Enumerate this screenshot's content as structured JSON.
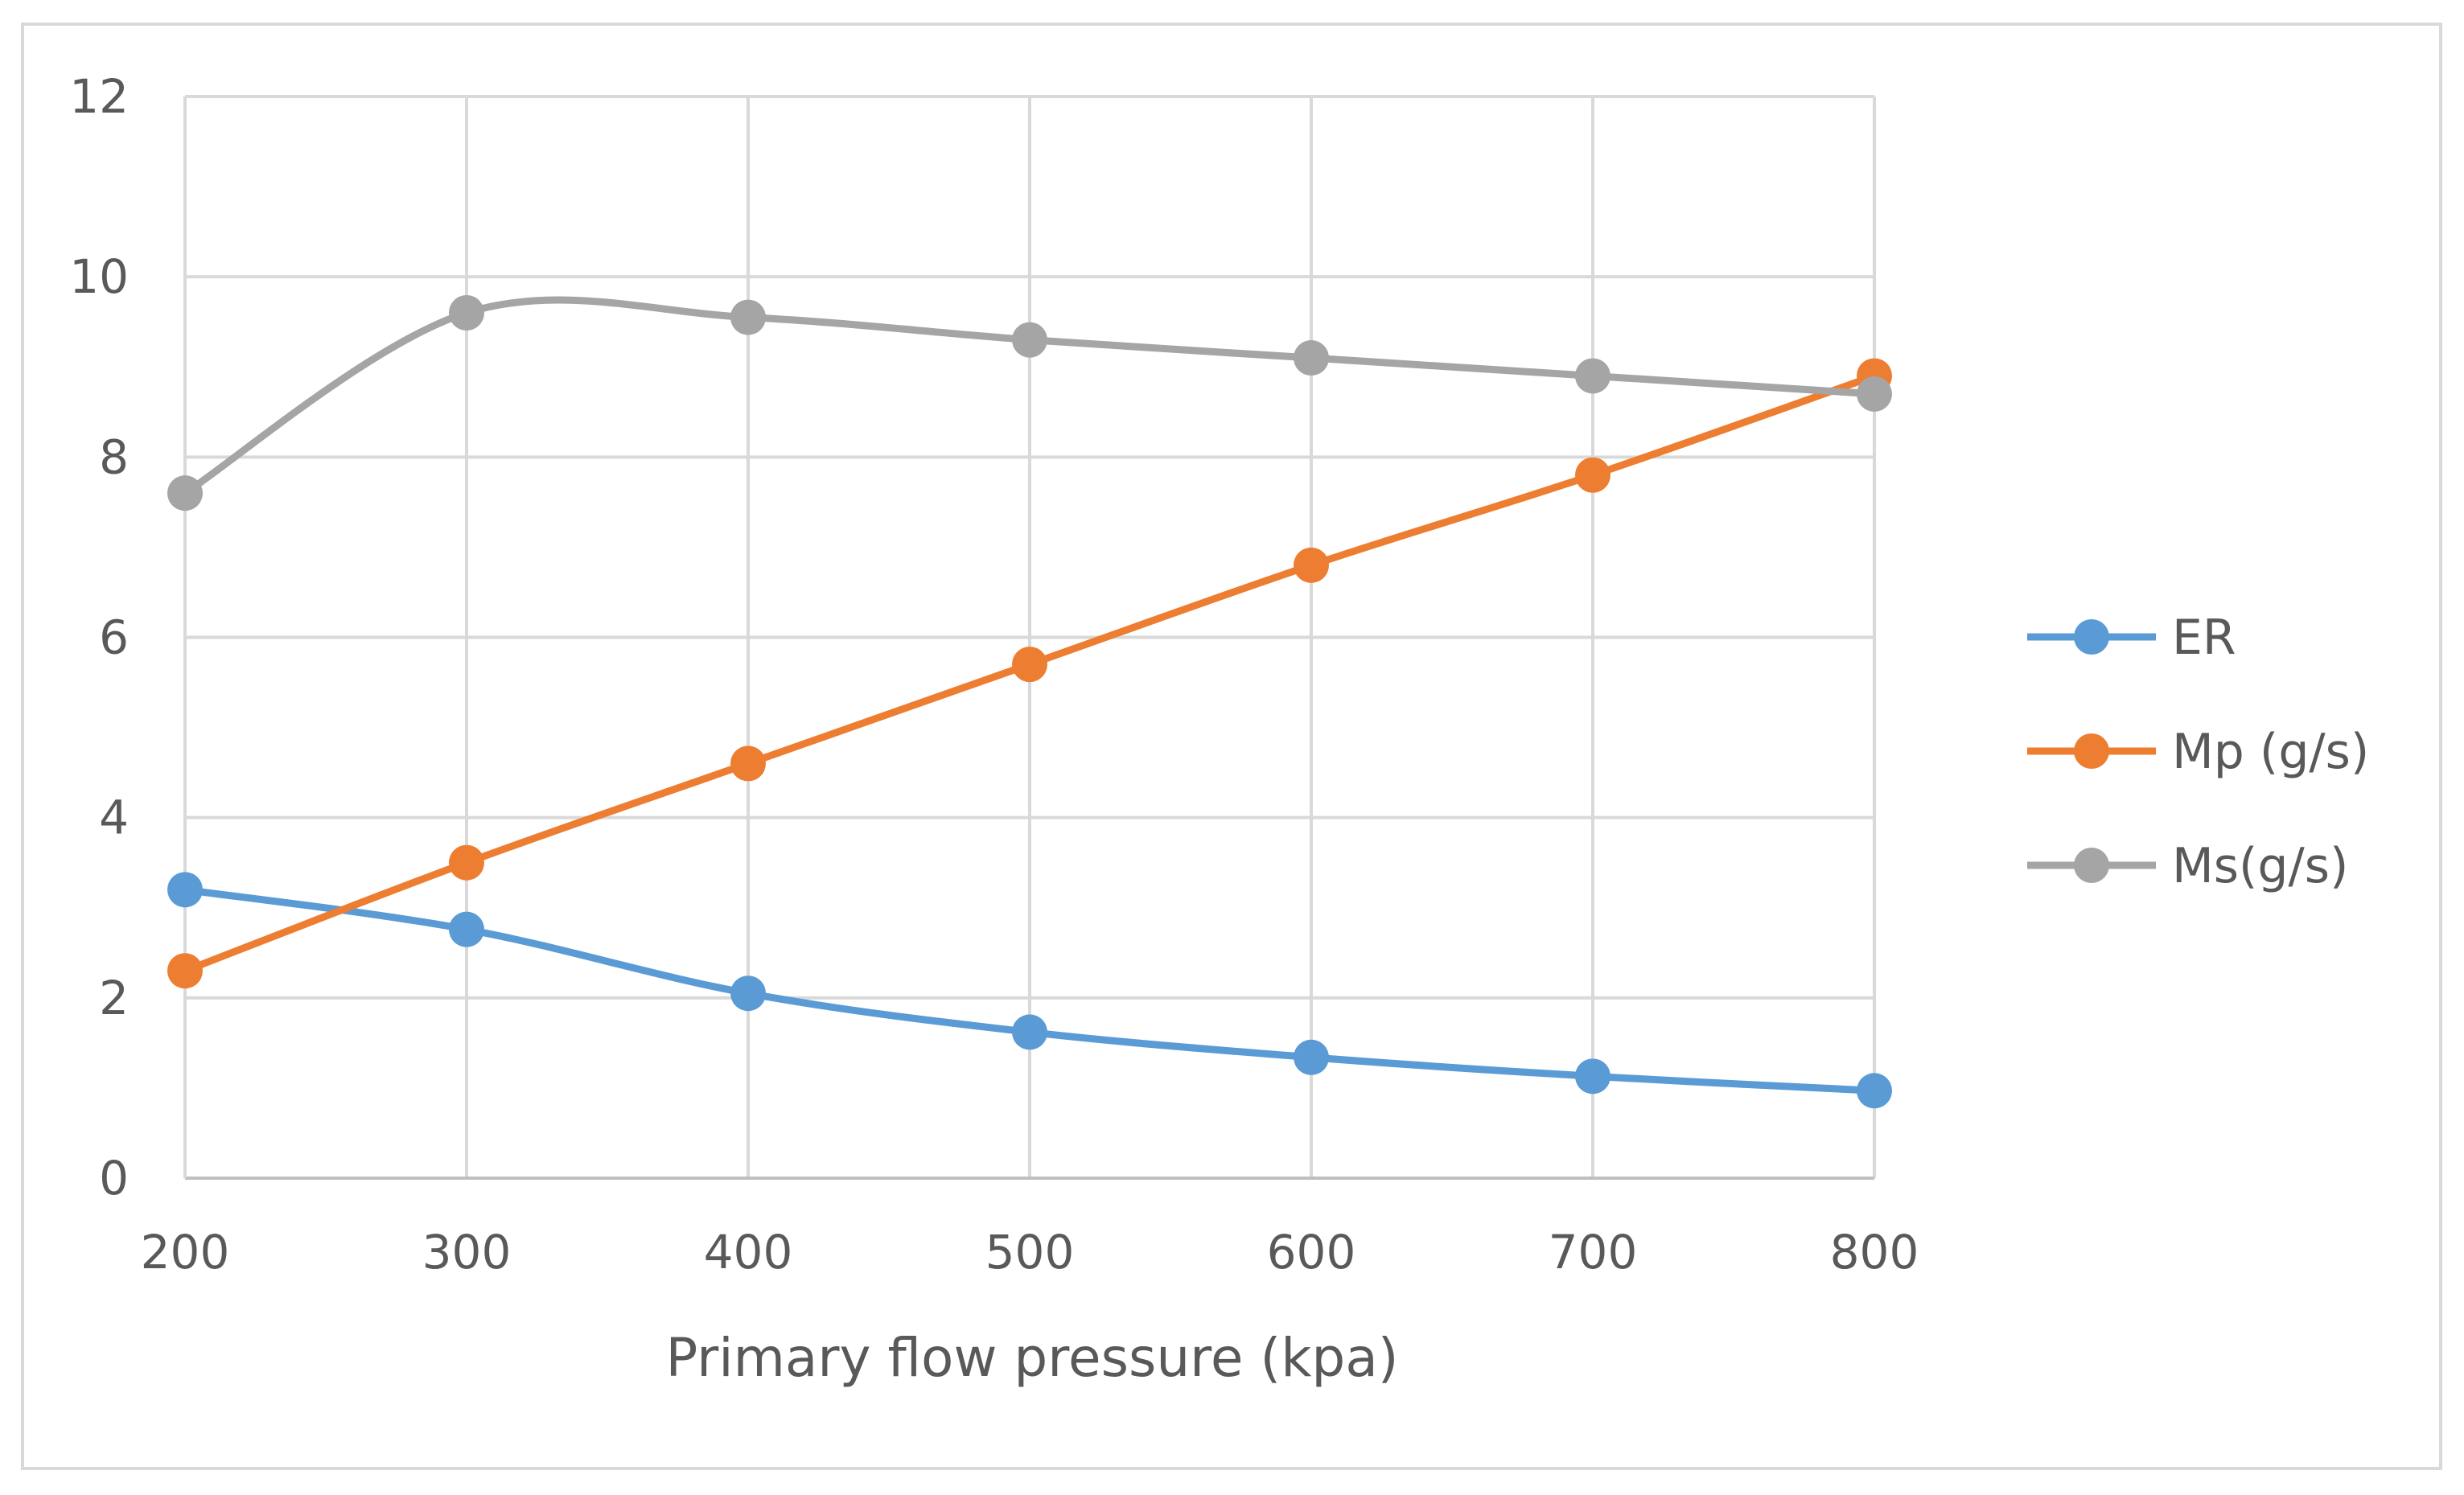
{
  "chart_data": {
    "type": "line",
    "title": "",
    "xlabel": "Primary flow pressure (kpa)",
    "ylabel": "",
    "x": [
      200,
      300,
      400,
      500,
      600,
      700,
      800
    ],
    "x_tick_labels": [
      "200",
      "300",
      "400",
      "500",
      "600",
      "700",
      "800"
    ],
    "y_tick_labels": [
      "0",
      "2",
      "4",
      "6",
      "8",
      "10",
      "12"
    ],
    "xlim": [
      200,
      800
    ],
    "ylim": [
      0,
      12
    ],
    "y_ticks": [
      0,
      2,
      4,
      6,
      8,
      10,
      12
    ],
    "grid": true,
    "smooth": true,
    "legend_position": "right",
    "series": [
      {
        "name": "ER",
        "color": "#5b9bd5",
        "values": [
          3.2,
          2.76,
          2.05,
          1.62,
          1.34,
          1.13,
          0.97
        ]
      },
      {
        "name": "Mp (g/s)",
        "color": "#ed7d31",
        "values": [
          2.3,
          3.5,
          4.6,
          5.7,
          6.8,
          7.8,
          8.9
        ]
      },
      {
        "name": "Ms(g/s)",
        "color": "#a5a5a5",
        "values": [
          7.6,
          9.6,
          9.55,
          9.3,
          9.1,
          8.9,
          8.7
        ]
      }
    ]
  }
}
